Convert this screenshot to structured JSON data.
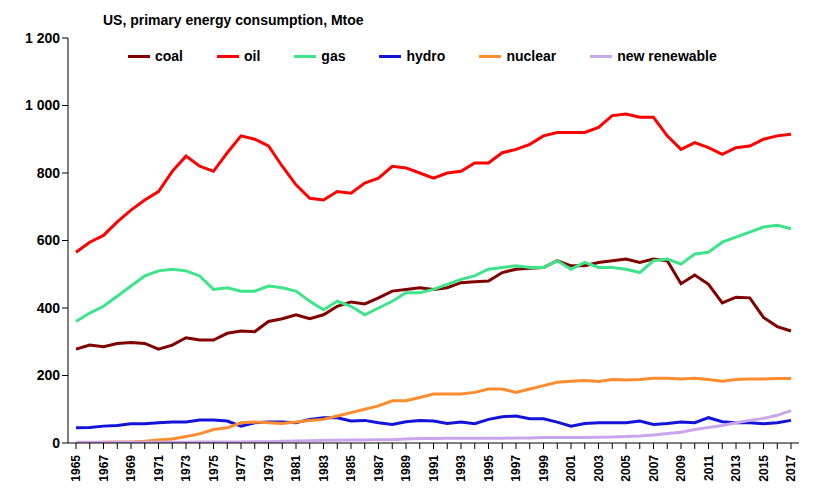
{
  "chart_data": {
    "type": "line",
    "title": "US, primary energy consumption, Mtoe",
    "categories": [
      "1965",
      null,
      "1967",
      null,
      "1969",
      null,
      "1971",
      null,
      "1973",
      null,
      "1975",
      null,
      "1977",
      null,
      "1979",
      null,
      "1981",
      null,
      "1983",
      null,
      "1985",
      null,
      "1987",
      null,
      "1989",
      null,
      "1991",
      null,
      "1993",
      null,
      "1995",
      null,
      "1997",
      null,
      "1999",
      null,
      "2001",
      null,
      "2003",
      null,
      "2005",
      null,
      "2007",
      null,
      "2009",
      null,
      "2011",
      null,
      "2013",
      null,
      "2015",
      null,
      "2017"
    ],
    "series": [
      {
        "name": "coal",
        "color": "#800000",
        "values": [
          278,
          290,
          285,
          295,
          298,
          295,
          278,
          290,
          312,
          305,
          305,
          325,
          332,
          330,
          360,
          368,
          380,
          368,
          380,
          405,
          418,
          412,
          430,
          450,
          455,
          460,
          455,
          460,
          475,
          478,
          480,
          505,
          515,
          518,
          520,
          540,
          525,
          525,
          535,
          540,
          545,
          535,
          545,
          540,
          472,
          498,
          470,
          415,
          432,
          430,
          372,
          345,
          332
        ]
      },
      {
        "name": "oil",
        "color": "#ff0000",
        "values": [
          565,
          595,
          615,
          655,
          690,
          720,
          745,
          805,
          850,
          820,
          805,
          860,
          910,
          900,
          880,
          820,
          765,
          725,
          720,
          745,
          740,
          770,
          785,
          820,
          815,
          800,
          785,
          800,
          805,
          830,
          830,
          860,
          870,
          885,
          910,
          920,
          920,
          920,
          935,
          970,
          975,
          965,
          965,
          910,
          870,
          890,
          875,
          855,
          875,
          880,
          900,
          910,
          915
        ]
      },
      {
        "name": "gas",
        "color": "#3ee48a",
        "values": [
          360,
          385,
          405,
          435,
          465,
          495,
          510,
          515,
          510,
          495,
          455,
          460,
          450,
          450,
          465,
          460,
          450,
          420,
          395,
          420,
          405,
          380,
          400,
          420,
          445,
          445,
          455,
          470,
          485,
          495,
          515,
          520,
          525,
          520,
          520,
          540,
          515,
          535,
          520,
          520,
          515,
          505,
          540,
          545,
          530,
          560,
          565,
          595,
          610,
          625,
          640,
          645,
          635
        ]
      },
      {
        "name": "hydro",
        "color": "#1414d8",
        "values": [
          45,
          46,
          50,
          52,
          57,
          57,
          60,
          62,
          62,
          68,
          68,
          65,
          50,
          60,
          62,
          62,
          60,
          70,
          75,
          75,
          65,
          67,
          60,
          55,
          63,
          67,
          65,
          58,
          62,
          57,
          70,
          78,
          80,
          72,
          72,
          62,
          50,
          58,
          60,
          60,
          60,
          65,
          55,
          58,
          62,
          60,
          75,
          63,
          60,
          60,
          57,
          60,
          67
        ]
      },
      {
        "name": "nuclear",
        "color": "#ff8c2e",
        "values": [
          1,
          1,
          2,
          3,
          3,
          5,
          9,
          12,
          19,
          27,
          40,
          45,
          60,
          62,
          60,
          58,
          62,
          67,
          70,
          80,
          90,
          100,
          110,
          125,
          125,
          135,
          145,
          145,
          145,
          150,
          160,
          160,
          150,
          160,
          170,
          180,
          183,
          185,
          182,
          188,
          187,
          188,
          192,
          192,
          190,
          192,
          188,
          183,
          188,
          190,
          190,
          191,
          191
        ]
      },
      {
        "name": "new renewable",
        "color": "#c9a6ec",
        "values": [
          2,
          2,
          2,
          2,
          2,
          2,
          2,
          2,
          2,
          3,
          3,
          3,
          3,
          4,
          4,
          5,
          6,
          7,
          8,
          8,
          9,
          9,
          10,
          10,
          12,
          13,
          13,
          14,
          14,
          14,
          14,
          14,
          15,
          15,
          16,
          16,
          16,
          16,
          17,
          18,
          19,
          21,
          24,
          28,
          32,
          40,
          46,
          52,
          60,
          67,
          73,
          82,
          96
        ]
      }
    ],
    "ylim": [
      0,
      1200
    ],
    "yticks": [
      0,
      200,
      400,
      600,
      800,
      {
        "value": 1000,
        "label": "1 000"
      },
      {
        "value": 1200,
        "label": "1 200"
      }
    ],
    "grid": false,
    "legend": "top"
  }
}
